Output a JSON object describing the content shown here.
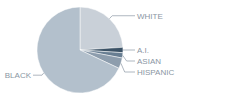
{
  "chart_data": {
    "type": "pie",
    "categories": [
      "WHITE",
      "A.I.",
      "ASIAN",
      "HISPANIC",
      "BLACK"
    ],
    "values": [
      24,
      2,
      2,
      4,
      68
    ],
    "colors": [
      "#c9d0d8",
      "#3b5266",
      "#687e92",
      "#8d9dad",
      "#b3c0cc"
    ]
  }
}
